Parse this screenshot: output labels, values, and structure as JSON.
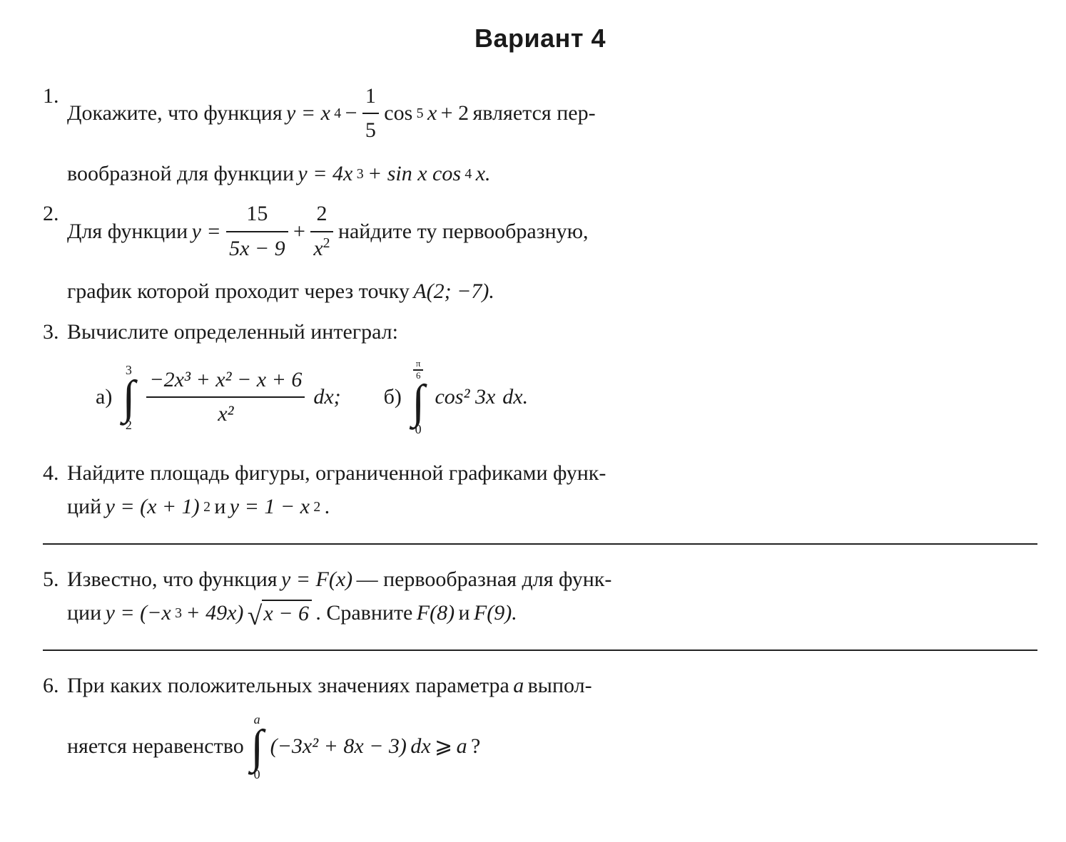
{
  "title": "Вариант 4",
  "colors": {
    "text": "#1a1a1a",
    "background": "#ffffff",
    "rule": "#222222"
  },
  "typography": {
    "body_font": "Times New Roman",
    "title_font": "Arial",
    "body_size_pt": 22,
    "title_size_pt": 27,
    "title_weight": "bold"
  },
  "problems": {
    "p1": {
      "num": "1.",
      "t1": "Докажите, что функция ",
      "eq_lhs": "y = x",
      "exp4": "4",
      "minus": " − ",
      "frac1_top": "1",
      "frac1_bot": "5",
      "cos": " cos",
      "exp5": "5",
      "xvar": " x",
      "plus2": " + 2",
      "t2": " является пер-",
      "t3": "вообразной для функции ",
      "eq2": "y = 4x",
      "exp3": "3",
      "plus": " + sin x cos",
      "exp4b": "4",
      "xend": " x."
    },
    "p2": {
      "num": "2.",
      "t1": "Для функции ",
      "y_eq": "y = ",
      "frac1_top": "15",
      "frac1_bot": "5x − 9",
      "plus": " + ",
      "frac2_top": "2",
      "frac2_bot": "x",
      "frac2_bot_exp": "2",
      "t2": " найдите ту первообразную,",
      "t3": "график которой проходит через точку ",
      "point": "A(2; −7)."
    },
    "p3": {
      "num": "3.",
      "t1": "Вычислите определенный интеграл:",
      "a_label": "а)",
      "a_upper": "3",
      "a_lower": "2",
      "a_num": "−2x³ + x² − x + 6",
      "a_den": "x²",
      "a_dx": "dx;",
      "b_label": "б)",
      "b_upper_top": "π",
      "b_upper_bot": "6",
      "b_lower": "0",
      "b_integrand": "cos² 3x",
      "b_dx": "dx."
    },
    "p4": {
      "num": "4.",
      "t1": "Найдите площадь фигуры, ограниченной графиками функ-",
      "t2": "ций ",
      "eq1": "y = (x + 1)",
      "exp2": "2",
      "and": " и ",
      "eq2": "y = 1 − x",
      "exp2b": "2",
      "dot": "."
    },
    "p5": {
      "num": "5.",
      "t1": "Известно, что функция ",
      "yF": "y = F(x)",
      "dash": " — первообразная для функ-",
      "t2": "ции ",
      "eq_pre": "y = (−x",
      "exp3": "3",
      "mid": " + 49x)",
      "sqrt_arg": "x − 6",
      "cmp": ". Сравните ",
      "F8": "F(8)",
      "and": " и ",
      "F9": "F(9)."
    },
    "p6": {
      "num": "6.",
      "t1": "При каких положительных значениях параметра ",
      "a_it": "a",
      "t1b": " выпол-",
      "t2": "няется неравенство ",
      "upper": "a",
      "lower": "0",
      "integrand": "(−3x² + 8x − 3)",
      "dx": "dx",
      "ge": " ⩾ ",
      "rhs": "a",
      "q": "?"
    }
  }
}
